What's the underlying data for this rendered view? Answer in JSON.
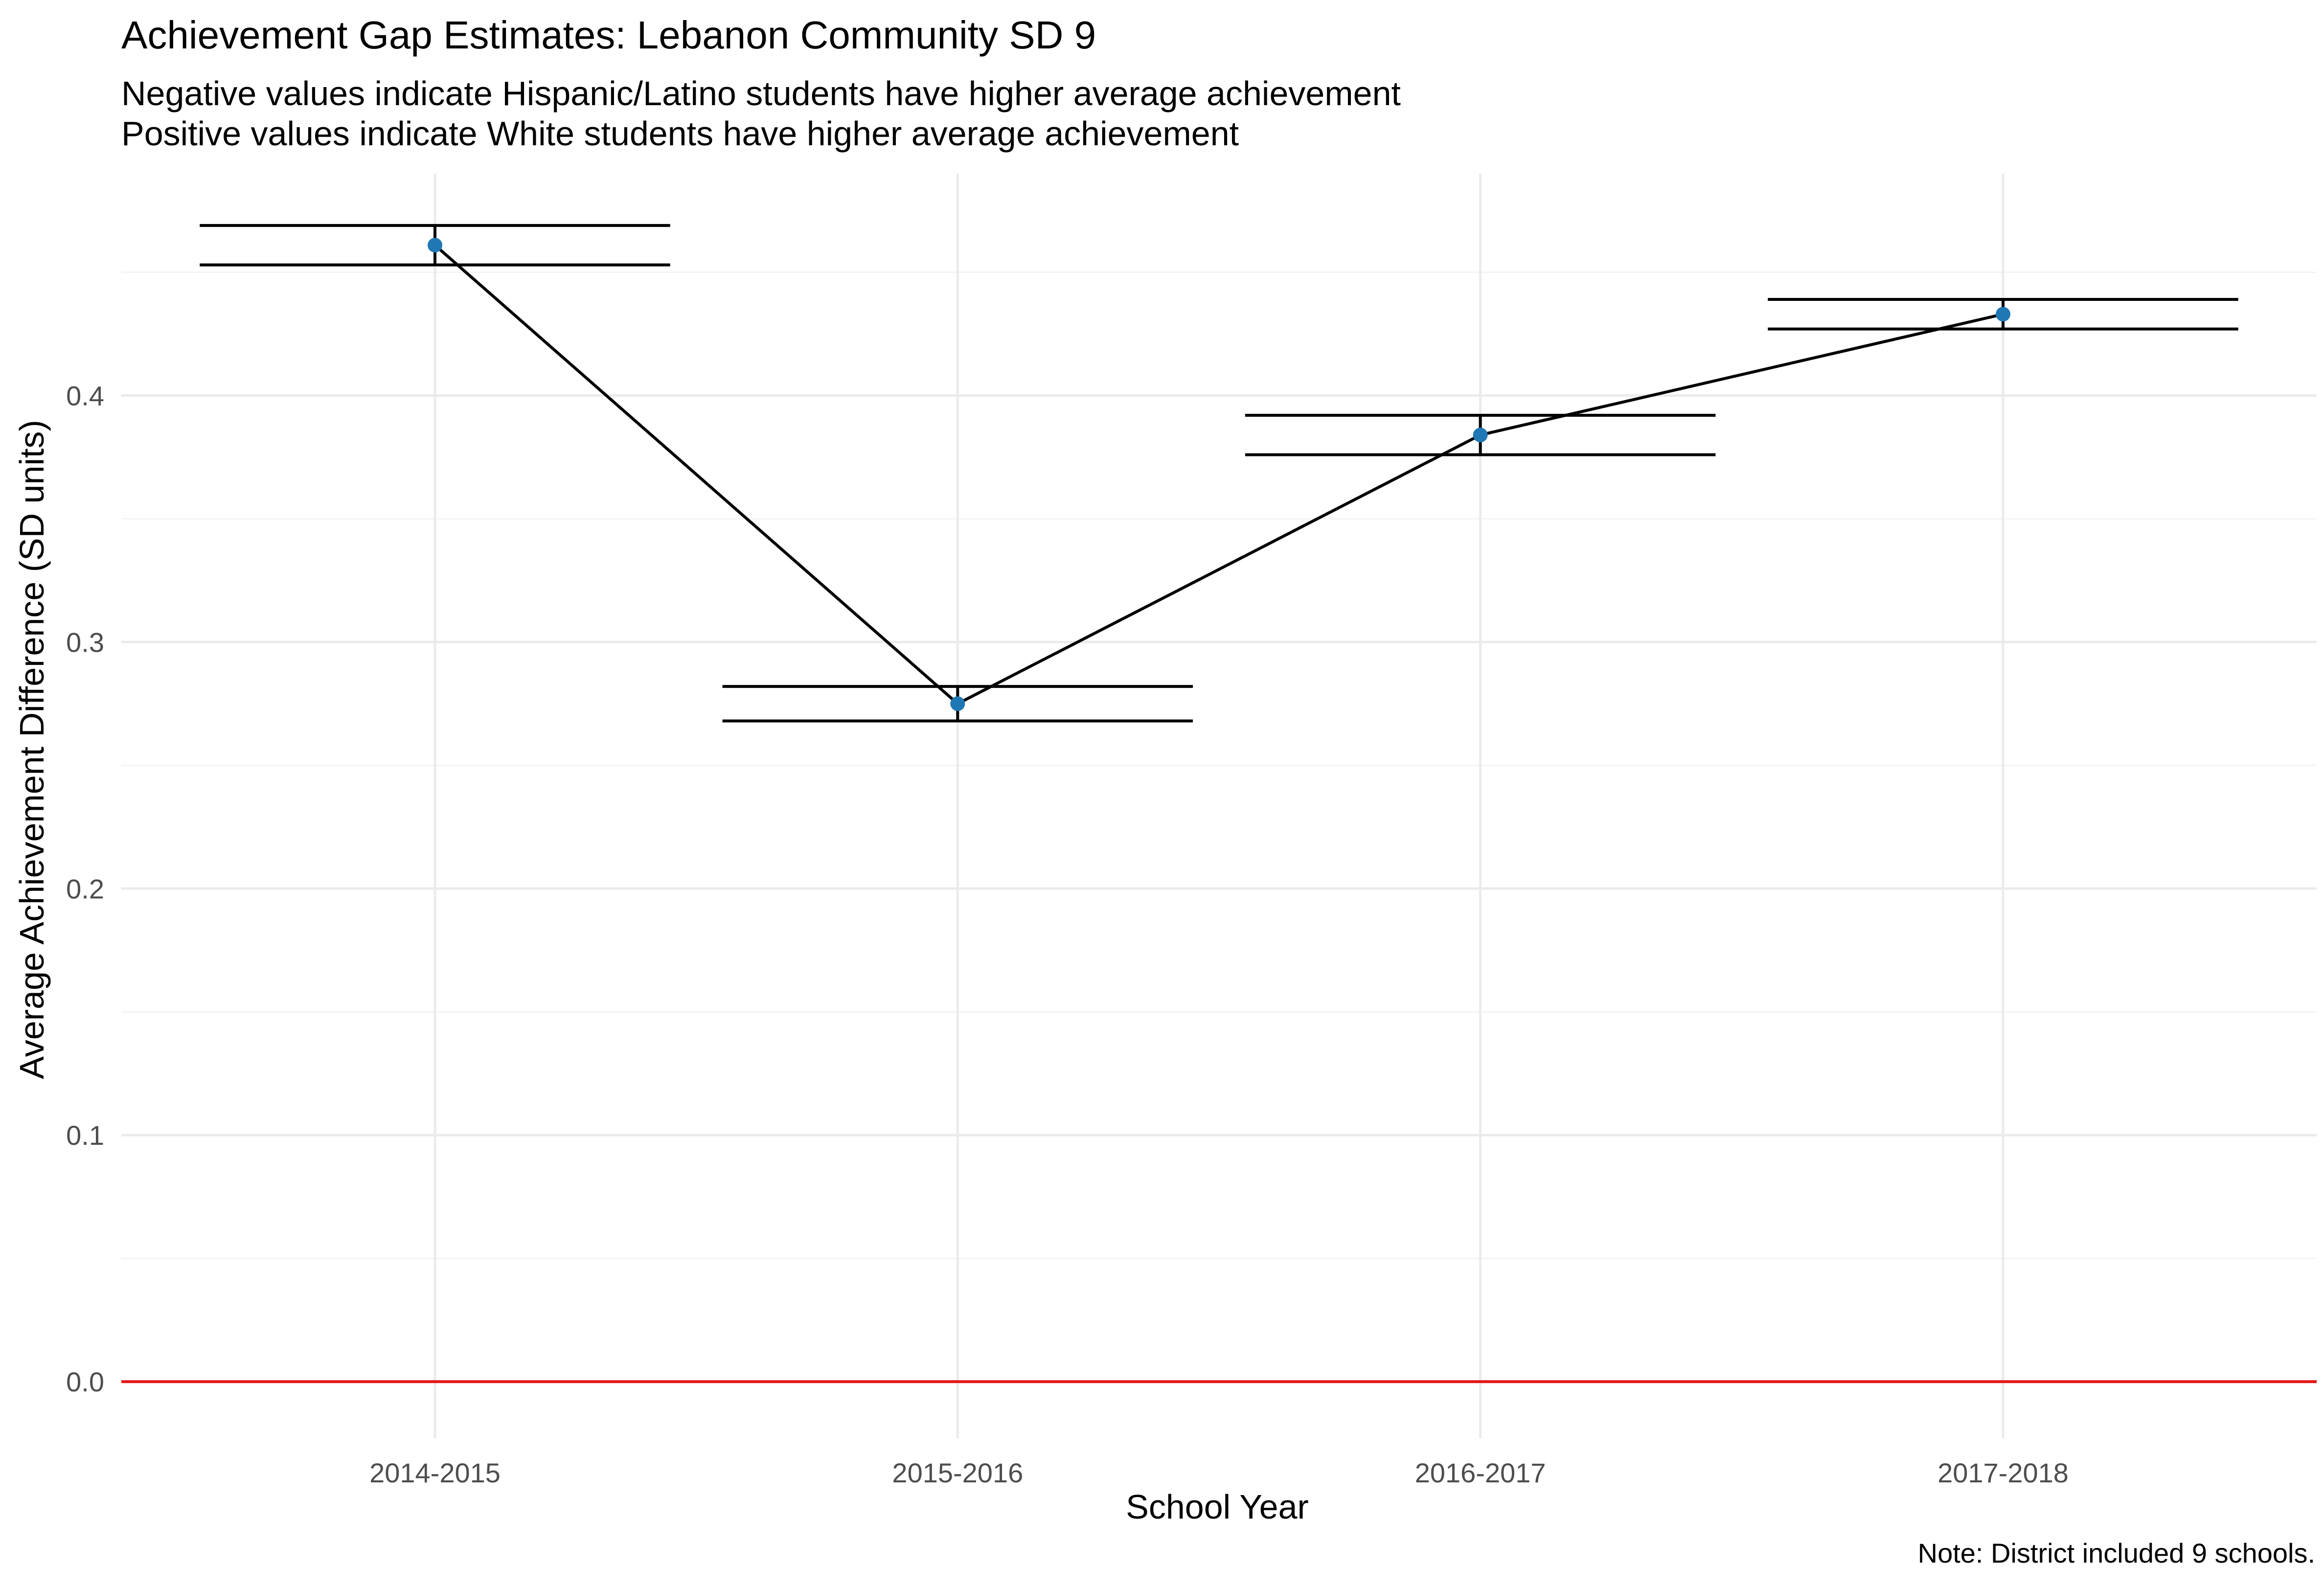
{
  "chart_data": {
    "type": "line",
    "title": "Achievement Gap Estimates: Lebanon Community SD 9",
    "subtitle_lines": [
      "Negative values indicate Hispanic/Latino students have higher average achievement",
      "Positive values indicate White students have higher average achievement"
    ],
    "caption": "Note: District included 9 schools.",
    "xlabel": "School Year",
    "ylabel": "Average Achievement Difference (SD units)",
    "categories": [
      "2014-2015",
      "2015-2016",
      "2016-2017",
      "2017-2018"
    ],
    "series": [
      {
        "values": [
          0.461,
          0.275,
          0.384,
          0.433
        ],
        "ci_upper": [
          0.469,
          0.282,
          0.392,
          0.439
        ],
        "ci_lower": [
          0.453,
          0.268,
          0.376,
          0.427
        ]
      }
    ],
    "yticks": [
      0.0,
      0.1,
      0.2,
      0.3,
      0.4
    ],
    "ytick_labels": [
      "0.0",
      "0.1",
      "0.2",
      "0.3",
      "0.4"
    ],
    "ylim": [
      -0.023,
      0.49
    ],
    "reference_line": 0.0,
    "grid": true,
    "colors": {
      "point": "#1f77b4",
      "line": "#000000",
      "errorbar": "#000000",
      "reference": "#e31a1c",
      "grid_major": "#ebebeb",
      "grid_minor": "#f4f4f4",
      "tick_text": "#4d4d4d"
    }
  }
}
